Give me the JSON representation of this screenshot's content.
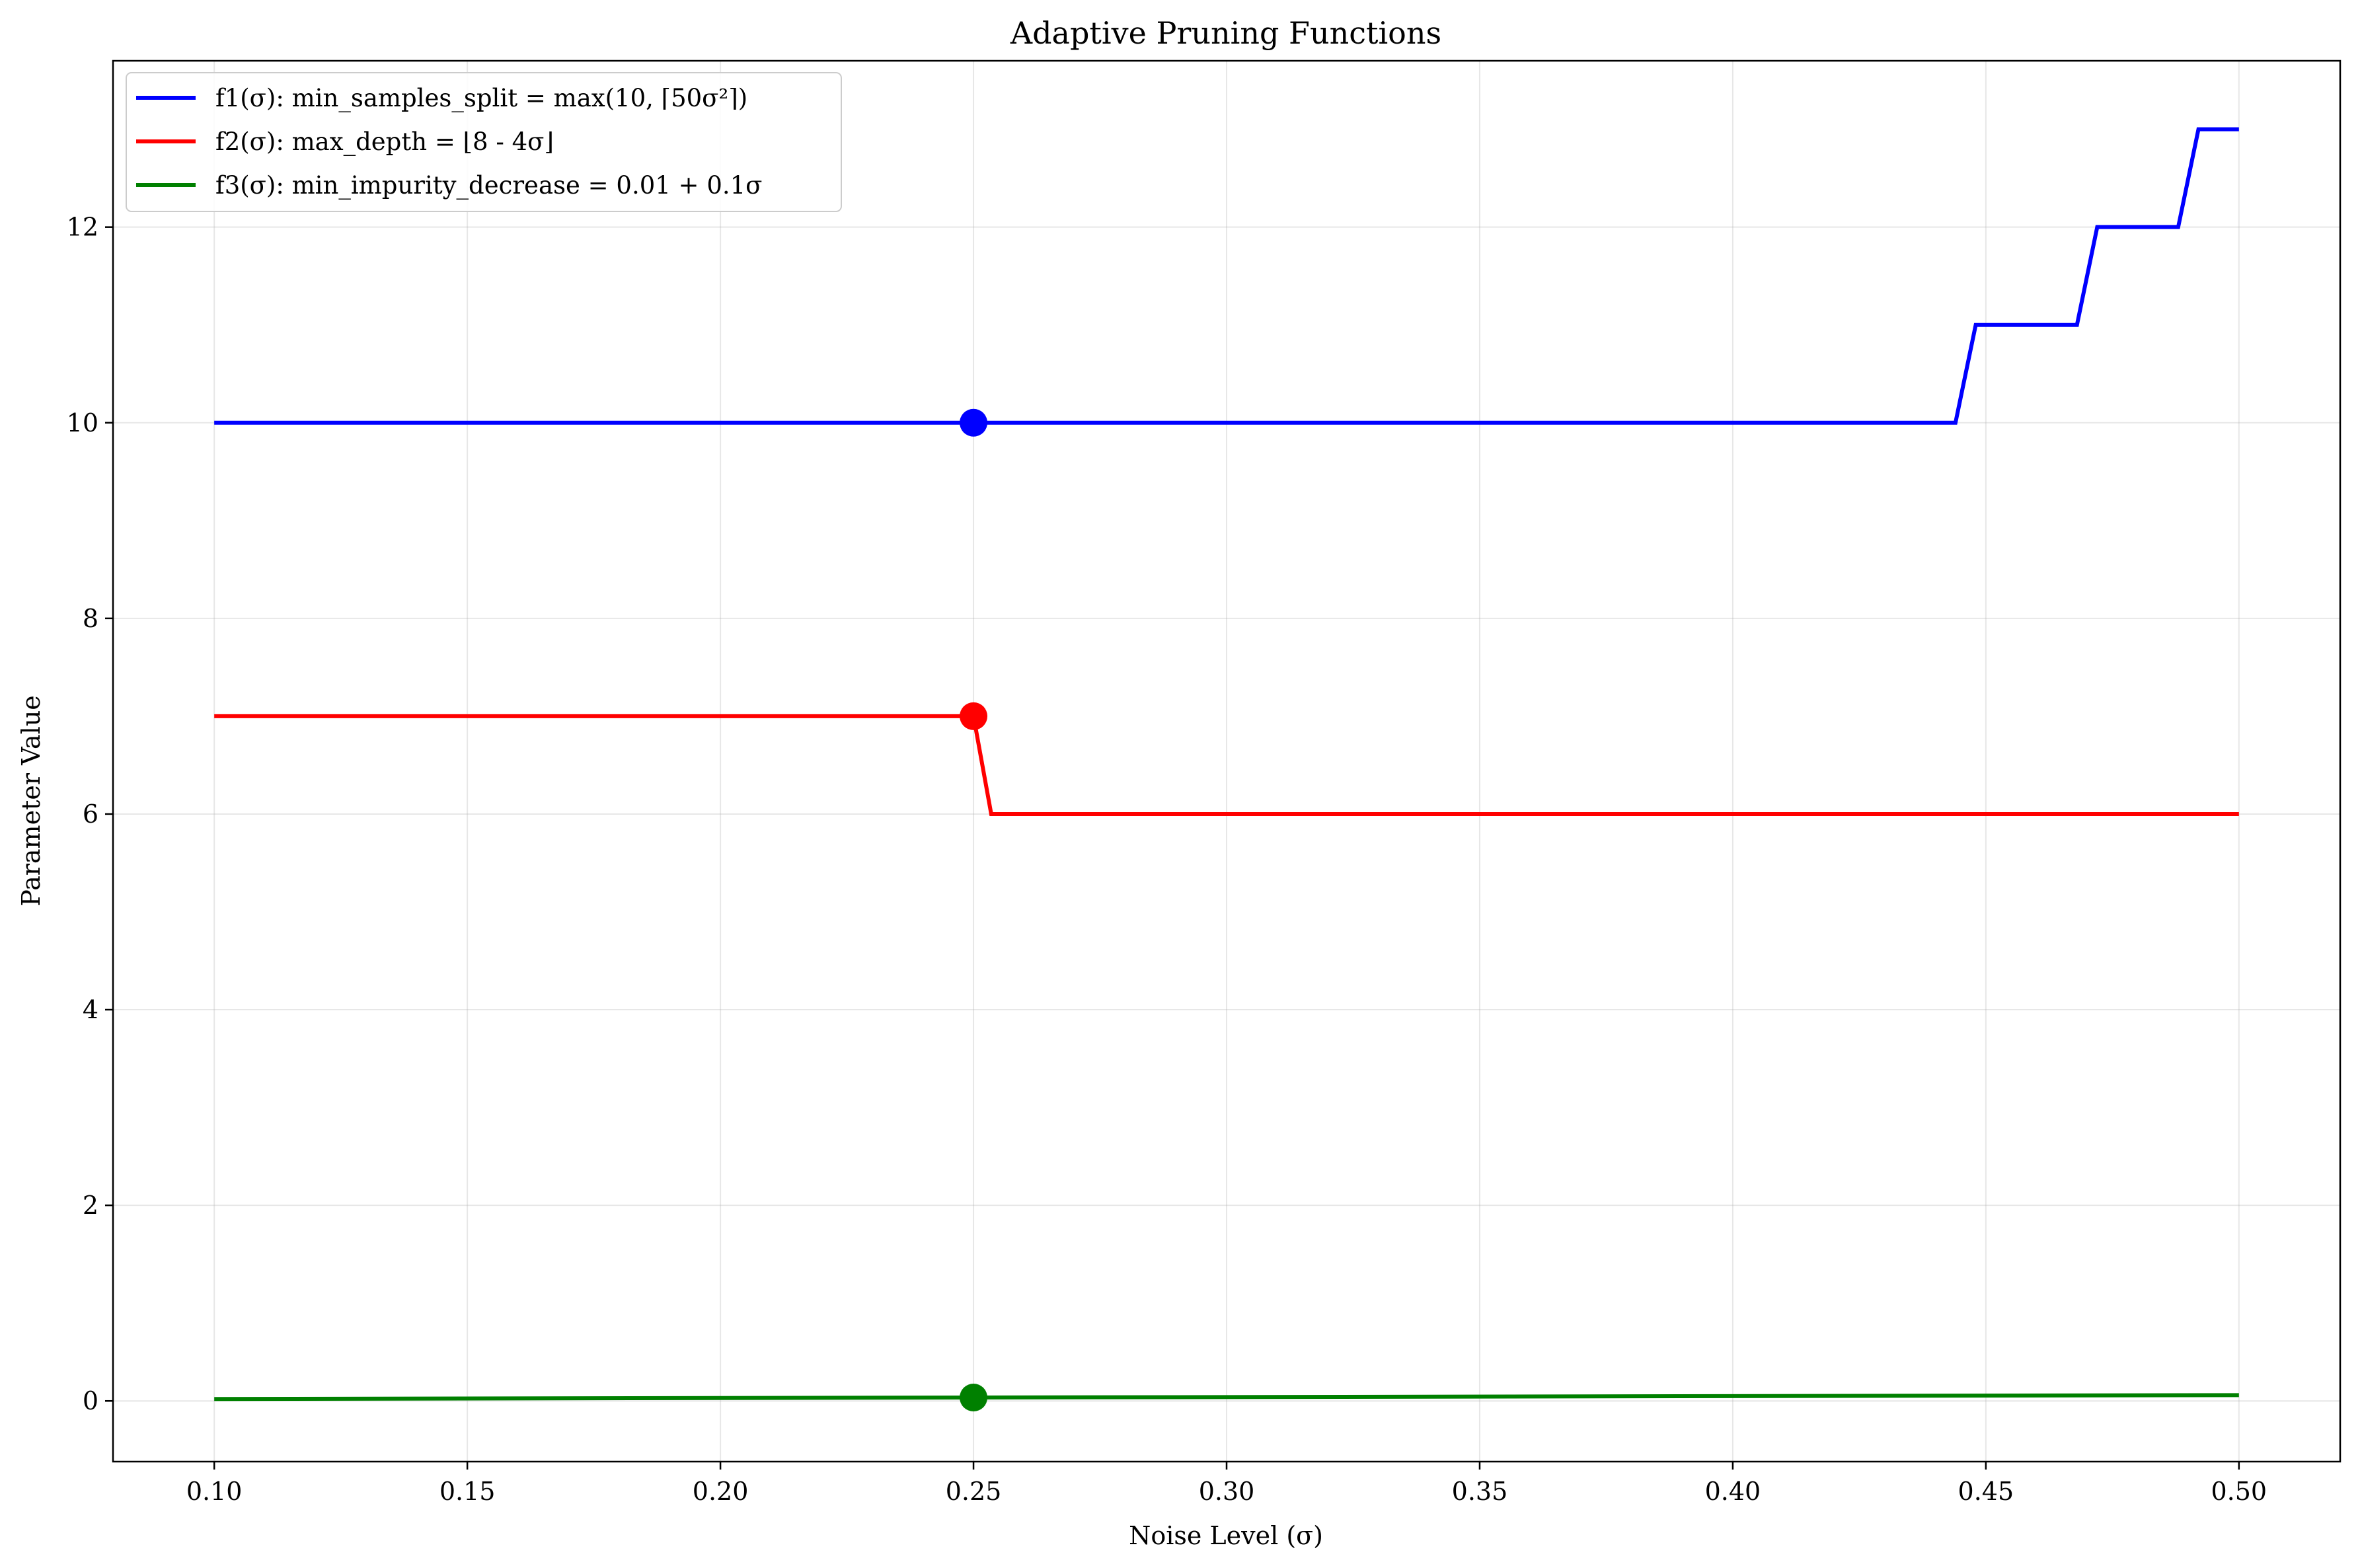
{
  "chart_data": {
    "type": "line",
    "title": "Adaptive Pruning Functions",
    "xlabel": "Noise Level (σ)",
    "ylabel": "Parameter Value",
    "xlim": [
      0.08,
      0.52
    ],
    "ylim": [
      -0.62,
      13.7
    ],
    "xticks": [
      0.1,
      0.15,
      0.2,
      0.25,
      0.3,
      0.35,
      0.4,
      0.45,
      0.5
    ],
    "xtick_labels": [
      "0.10",
      "0.15",
      "0.20",
      "0.25",
      "0.30",
      "0.35",
      "0.40",
      "0.45",
      "0.50"
    ],
    "yticks": [
      0,
      2,
      4,
      6,
      8,
      10,
      12
    ],
    "ytick_labels": [
      "0",
      "2",
      "4",
      "6",
      "8",
      "10",
      "12"
    ],
    "grid": true,
    "legend_position": "top-left",
    "series": [
      {
        "name": "f1(σ): min_samples_split = max(10, ⌈50σ²⌉)",
        "color": "#0000ff",
        "x": [
          0.1,
          0.444,
          0.448,
          0.468,
          0.472,
          0.488,
          0.492,
          0.5
        ],
        "y": [
          10,
          10,
          11,
          11,
          12,
          12,
          13,
          13
        ]
      },
      {
        "name": "f2(σ): max_depth = ⌊8 - 4σ⌋",
        "color": "#ff0000",
        "x": [
          0.1,
          0.25,
          0.2535,
          0.5
        ],
        "y": [
          7,
          7,
          6,
          6
        ]
      },
      {
        "name": "f3(σ): min_impurity_decrease = 0.01 + 0.1σ",
        "color": "#008000",
        "x": [
          0.1,
          0.5
        ],
        "y": [
          0.02,
          0.06
        ]
      }
    ],
    "markers": [
      {
        "series": 0,
        "x": 0.25,
        "y": 10,
        "color": "#0000ff"
      },
      {
        "series": 1,
        "x": 0.25,
        "y": 7,
        "color": "#ff0000"
      },
      {
        "series": 2,
        "x": 0.25,
        "y": 0.035,
        "color": "#008000"
      }
    ]
  }
}
